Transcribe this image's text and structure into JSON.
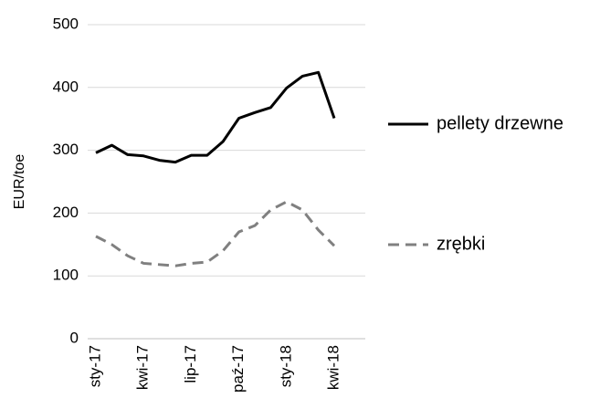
{
  "chart_data": {
    "type": "line",
    "ylabel": "EUR/toe",
    "categories": [
      "sty-17",
      null,
      null,
      "kwi-17",
      null,
      null,
      "lip-17",
      null,
      null,
      "paź-17",
      null,
      null,
      "sty-18",
      null,
      null,
      "kwi-18"
    ],
    "series": [
      {
        "name": "pellety drzewne",
        "color": "#000000",
        "dashed": false,
        "values": [
          296,
          308,
          293,
          291,
          284,
          281,
          292,
          292,
          314,
          351,
          360,
          368,
          399,
          418,
          424,
          351
        ]
      },
      {
        "name": "zrębki",
        "color": "#808080",
        "dashed": true,
        "values": [
          163,
          150,
          132,
          120,
          118,
          116,
          120,
          122,
          140,
          170,
          180,
          205,
          218,
          205,
          173,
          148
        ]
      }
    ],
    "ylim": [
      0,
      500
    ],
    "yticks": [
      0,
      100,
      200,
      300,
      400,
      500
    ],
    "grid": true
  }
}
